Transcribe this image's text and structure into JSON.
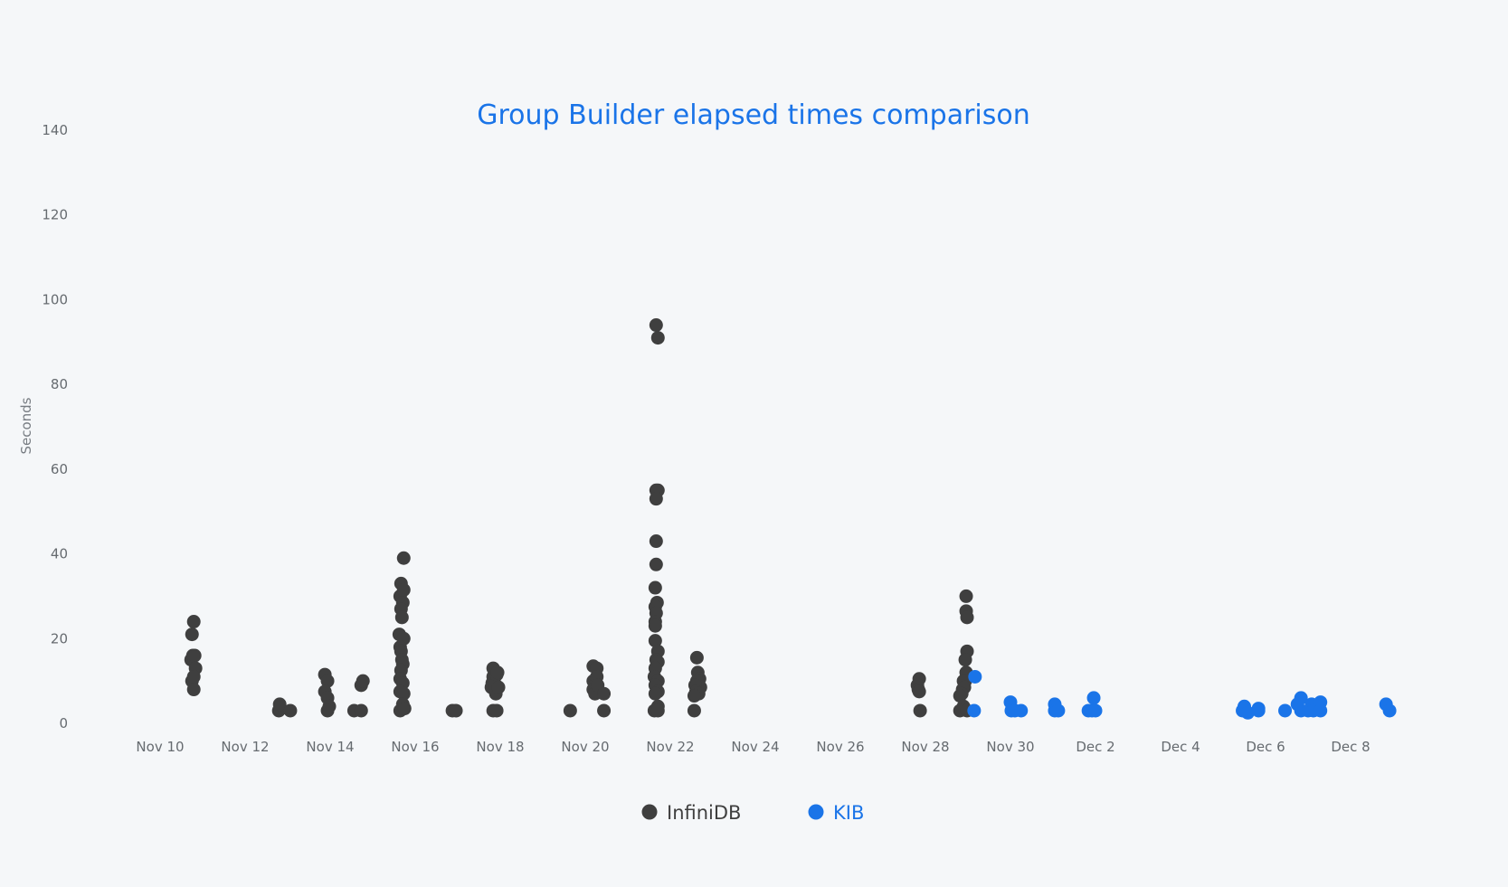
{
  "chart_data": {
    "type": "scatter",
    "title": "Group Builder elapsed times comparison",
    "xlabel": "",
    "ylabel": "Seconds",
    "ylim": [
      0,
      140
    ],
    "yticks": [
      0,
      20,
      40,
      60,
      80,
      100,
      120,
      140
    ],
    "xlim": [
      "2023-11-09",
      "2023-12-09"
    ],
    "xticks": [
      {
        "date": "2023-11-10",
        "label": "Nov 10"
      },
      {
        "date": "2023-11-12",
        "label": "Nov 12"
      },
      {
        "date": "2023-11-14",
        "label": "Nov 14"
      },
      {
        "date": "2023-11-16",
        "label": "Nov 16"
      },
      {
        "date": "2023-11-18",
        "label": "Nov 18"
      },
      {
        "date": "2023-11-20",
        "label": "Nov 20"
      },
      {
        "date": "2023-11-22",
        "label": "Nov 22"
      },
      {
        "date": "2023-11-24",
        "label": "Nov 24"
      },
      {
        "date": "2023-11-26",
        "label": "Nov 26"
      },
      {
        "date": "2023-11-28",
        "label": "Nov 28"
      },
      {
        "date": "2023-11-30",
        "label": "Nov 30"
      },
      {
        "date": "2023-12-02",
        "label": "Dec 2"
      },
      {
        "date": "2023-12-04",
        "label": "Dec 4"
      },
      {
        "date": "2023-12-06",
        "label": "Dec 6"
      },
      {
        "date": "2023-12-08",
        "label": "Dec 8"
      }
    ],
    "grid": false,
    "legend_position": "bottom-center",
    "series": [
      {
        "name": "InfiniDB",
        "color": "#3f3f3f",
        "points": [
          [
            "2023-11-10 18:00",
            21
          ],
          [
            "2023-11-10 19:00",
            24
          ],
          [
            "2023-11-10 17:30",
            15
          ],
          [
            "2023-11-10 18:30",
            16
          ],
          [
            "2023-11-10 19:30",
            16
          ],
          [
            "2023-11-10 20:00",
            13
          ],
          [
            "2023-11-10 18:00",
            10
          ],
          [
            "2023-11-10 19:00",
            11
          ],
          [
            "2023-11-10 19:00",
            8
          ],
          [
            "2023-11-12 19:00",
            3
          ],
          [
            "2023-11-12 19:30",
            4.5
          ],
          [
            "2023-11-13 01:30",
            3
          ],
          [
            "2023-11-13 21:00",
            11.5
          ],
          [
            "2023-11-13 22:30",
            10
          ],
          [
            "2023-11-13 21:00",
            7.5
          ],
          [
            "2023-11-13 22:30",
            6
          ],
          [
            "2023-11-13 23:30",
            4
          ],
          [
            "2023-11-13 22:30",
            3
          ],
          [
            "2023-11-14 13:30",
            3
          ],
          [
            "2023-11-14 17:30",
            9
          ],
          [
            "2023-11-14 18:30",
            10
          ],
          [
            "2023-11-14 17:30",
            3
          ],
          [
            "2023-11-15 17:30",
            39
          ],
          [
            "2023-11-15 16:00",
            33
          ],
          [
            "2023-11-15 15:30",
            30
          ],
          [
            "2023-11-15 17:30",
            31.5
          ],
          [
            "2023-11-15 17:00",
            28.5
          ],
          [
            "2023-11-15 16:00",
            27
          ],
          [
            "2023-11-15 16:30",
            25
          ],
          [
            "2023-11-15 15:00",
            21
          ],
          [
            "2023-11-15 17:30",
            20
          ],
          [
            "2023-11-15 15:30",
            18
          ],
          [
            "2023-11-15 16:00",
            17
          ],
          [
            "2023-11-15 16:30",
            15
          ],
          [
            "2023-11-15 17:00",
            14
          ],
          [
            "2023-11-15 16:00",
            12.5
          ],
          [
            "2023-11-15 15:30",
            10.5
          ],
          [
            "2023-11-15 17:00",
            9.5
          ],
          [
            "2023-11-15 15:30",
            7.5
          ],
          [
            "2023-11-15 17:30",
            7
          ],
          [
            "2023-11-15 17:00",
            4.5
          ],
          [
            "2023-11-15 15:30",
            3
          ],
          [
            "2023-11-15 18:00",
            3.5
          ],
          [
            "2023-11-16 21:00",
            3
          ],
          [
            "2023-11-16 23:00",
            3
          ],
          [
            "2023-11-17 20:00",
            13
          ],
          [
            "2023-11-17 20:00",
            11
          ],
          [
            "2023-11-17 19:30",
            9.5
          ],
          [
            "2023-11-17 20:30",
            10
          ],
          [
            "2023-11-17 19:00",
            8.5
          ],
          [
            "2023-11-17 21:00",
            9
          ],
          [
            "2023-11-17 21:30",
            7
          ],
          [
            "2023-11-17 22:00",
            11.5
          ],
          [
            "2023-11-17 22:30",
            12
          ],
          [
            "2023-11-17 23:00",
            8.5
          ],
          [
            "2023-11-17 20:00",
            3
          ],
          [
            "2023-11-17 22:00",
            3
          ],
          [
            "2023-11-19 15:30",
            3
          ],
          [
            "2023-11-20 04:30",
            13.5
          ],
          [
            "2023-11-20 04:30",
            10
          ],
          [
            "2023-11-20 05:30",
            9
          ],
          [
            "2023-11-20 04:30",
            8
          ],
          [
            "2023-11-20 05:30",
            7
          ],
          [
            "2023-11-20 06:30",
            13
          ],
          [
            "2023-11-20 06:30",
            11
          ],
          [
            "2023-11-20 07:00",
            9
          ],
          [
            "2023-11-20 10:30",
            7
          ],
          [
            "2023-11-20 10:30",
            3
          ],
          [
            "2023-11-21 16:00",
            94
          ],
          [
            "2023-11-21 17:00",
            91
          ],
          [
            "2023-11-21 16:00",
            55
          ],
          [
            "2023-11-21 17:00",
            55
          ],
          [
            "2023-11-21 16:00",
            53
          ],
          [
            "2023-11-21 16:00",
            43
          ],
          [
            "2023-11-21 16:00",
            37.5
          ],
          [
            "2023-11-21 15:30",
            32
          ],
          [
            "2023-11-21 16:30",
            28.5
          ],
          [
            "2023-11-21 15:30",
            27.5
          ],
          [
            "2023-11-21 16:00",
            26
          ],
          [
            "2023-11-21 15:30",
            24
          ],
          [
            "2023-11-21 15:30",
            23
          ],
          [
            "2023-11-21 15:30",
            19.5
          ],
          [
            "2023-11-21 17:00",
            17
          ],
          [
            "2023-11-21 16:00",
            15
          ],
          [
            "2023-11-21 17:00",
            14.5
          ],
          [
            "2023-11-21 15:30",
            13
          ],
          [
            "2023-11-21 15:00",
            11
          ],
          [
            "2023-11-21 17:00",
            10
          ],
          [
            "2023-11-21 15:30",
            9
          ],
          [
            "2023-11-21 17:00",
            7.5
          ],
          [
            "2023-11-21 15:30",
            7
          ],
          [
            "2023-11-21 17:00",
            4
          ],
          [
            "2023-11-21 15:00",
            3
          ],
          [
            "2023-11-21 17:00",
            3
          ],
          [
            "2023-11-22 15:00",
            15.5
          ],
          [
            "2023-11-22 15:30",
            12
          ],
          [
            "2023-11-22 16:30",
            10.5
          ],
          [
            "2023-11-22 15:00",
            10
          ],
          [
            "2023-11-22 17:00",
            8.5
          ],
          [
            "2023-11-22 14:00",
            9
          ],
          [
            "2023-11-22 14:30",
            7.5
          ],
          [
            "2023-11-22 16:00",
            7
          ],
          [
            "2023-11-22 13:30",
            6.5
          ],
          [
            "2023-11-22 13:30",
            3
          ],
          [
            "2023-11-27 20:30",
            10.5
          ],
          [
            "2023-11-27 19:30",
            9
          ],
          [
            "2023-11-27 20:00",
            8
          ],
          [
            "2023-11-27 20:30",
            7.5
          ],
          [
            "2023-11-27 21:00",
            3
          ],
          [
            "2023-11-28 23:00",
            30
          ],
          [
            "2023-11-28 23:00",
            26.5
          ],
          [
            "2023-11-28 23:30",
            25
          ],
          [
            "2023-11-28 23:30",
            17
          ],
          [
            "2023-11-28 22:30",
            15
          ],
          [
            "2023-11-28 23:00",
            12
          ],
          [
            "2023-11-28 21:30",
            10
          ],
          [
            "2023-11-28 22:30",
            10
          ],
          [
            "2023-11-28 21:00",
            8
          ],
          [
            "2023-11-28 22:00",
            8.5
          ],
          [
            "2023-11-28 20:30",
            7
          ],
          [
            "2023-11-28 19:30",
            6.5
          ],
          [
            "2023-11-28 21:30",
            4
          ],
          [
            "2023-11-28 19:30",
            3
          ],
          [
            "2023-11-28 23:30",
            3
          ]
        ]
      },
      {
        "name": "KIB",
        "color": "#1a74e8",
        "points": [
          [
            "2023-11-29 04:00",
            11
          ],
          [
            "2023-11-29 03:30",
            3
          ],
          [
            "2023-11-30 00:00",
            5
          ],
          [
            "2023-11-30 00:30",
            3
          ],
          [
            "2023-11-30 02:30",
            3
          ],
          [
            "2023-11-30 06:00",
            3
          ],
          [
            "2023-12-01 01:00",
            4.5
          ],
          [
            "2023-12-01 01:00",
            3
          ],
          [
            "2023-12-01 03:00",
            3
          ],
          [
            "2023-12-01 23:00",
            6
          ],
          [
            "2023-12-01 20:00",
            3
          ],
          [
            "2023-12-01 22:00",
            3
          ],
          [
            "2023-12-02 00:00",
            3
          ],
          [
            "2023-12-05 12:00",
            4
          ],
          [
            "2023-12-05 11:00",
            3
          ],
          [
            "2023-12-05 14:00",
            2.5
          ],
          [
            "2023-12-05 20:00",
            3.5
          ],
          [
            "2023-12-05 20:00",
            3
          ],
          [
            "2023-12-06 20:00",
            6
          ],
          [
            "2023-12-06 18:00",
            4.5
          ],
          [
            "2023-12-06 11:00",
            3
          ],
          [
            "2023-12-06 20:00",
            3
          ],
          [
            "2023-12-07 02:00",
            4.5
          ],
          [
            "2023-12-07 07:00",
            5
          ],
          [
            "2023-12-07 00:00",
            3
          ],
          [
            "2023-12-07 03:00",
            3
          ],
          [
            "2023-12-07 07:00",
            3
          ],
          [
            "2023-12-08 20:00",
            4.5
          ],
          [
            "2023-12-08 22:00",
            3
          ]
        ]
      }
    ]
  },
  "colors": {
    "background": "#f5f7f9",
    "title": "#1a74e8",
    "tick_text": "#666b70"
  }
}
